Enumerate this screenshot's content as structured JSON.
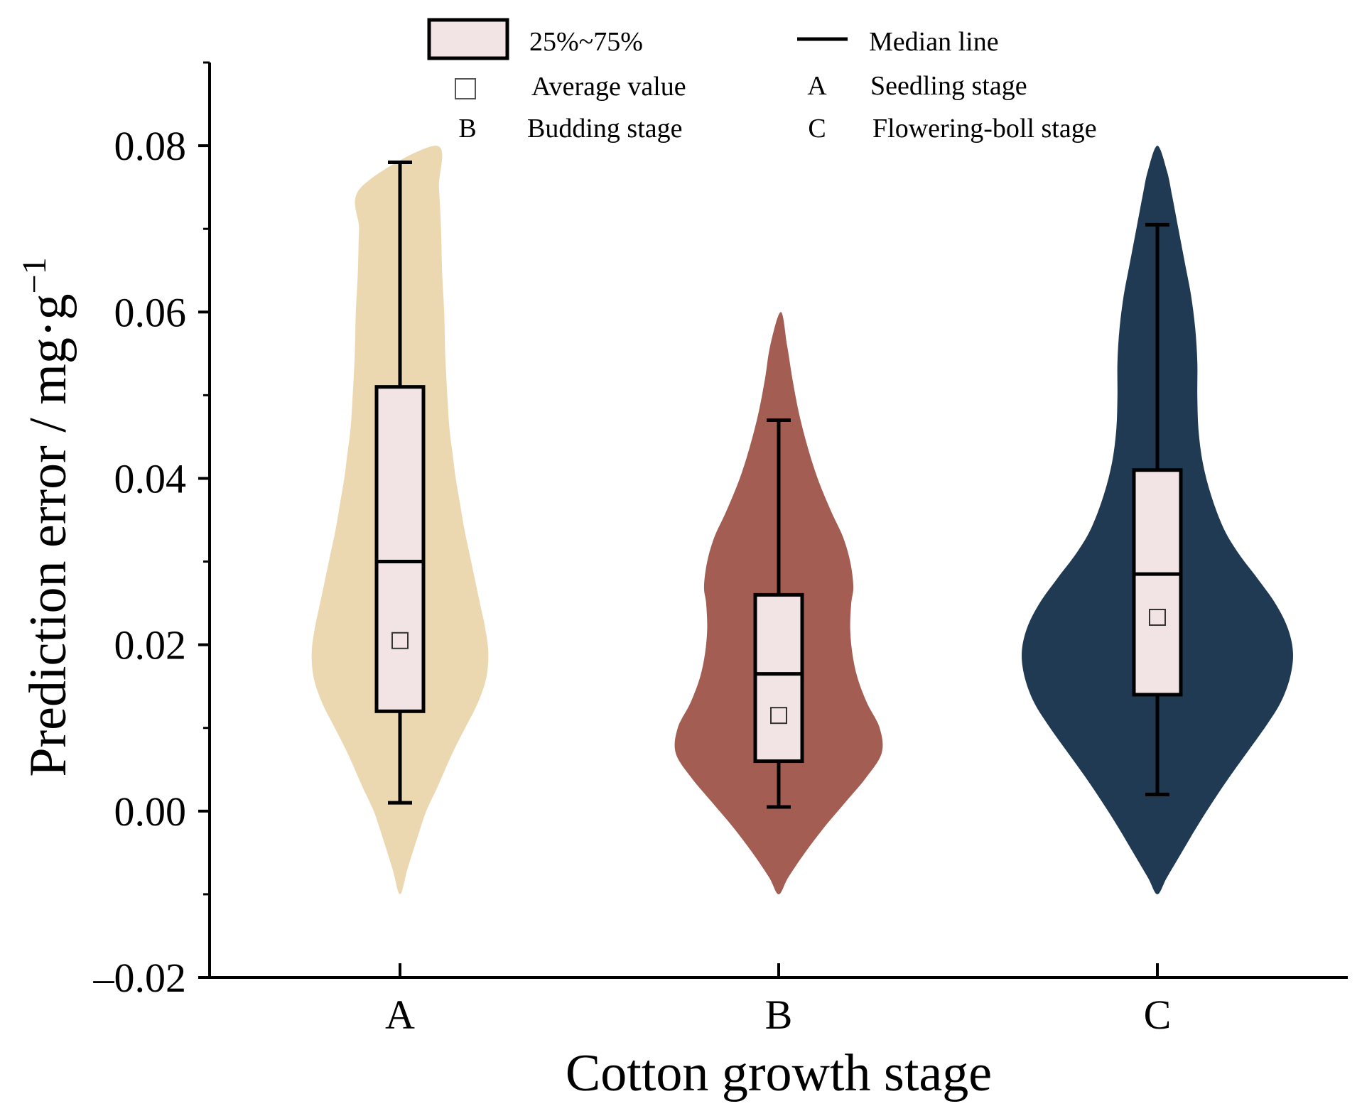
{
  "chart_data": {
    "type": "violin",
    "xlabel": "Cotton growth stage",
    "ylabel_main": "Prediction error / mg·g",
    "ylabel_sup": "−1",
    "ylim": [
      -0.02,
      0.09
    ],
    "yticks": [
      -0.02,
      0.0,
      0.02,
      0.04,
      0.06,
      0.08
    ],
    "ytick_labels": [
      "–0.02",
      "0.00",
      "0.02",
      "0.04",
      "0.06",
      "0.08"
    ],
    "categories": [
      "A",
      "B",
      "C"
    ],
    "colors": {
      "box_fill": "#f2e4e4",
      "line": "#000000"
    },
    "series": [
      {
        "name": "A",
        "color": "#ecd8b0",
        "whisker_low": 0.001,
        "q1": 0.012,
        "median": 0.03,
        "q3": 0.051,
        "whisker_high": 0.078,
        "mean": 0.0205,
        "violin": [
          [
            -0.01,
            0.0
          ],
          [
            -0.007,
            0.007
          ],
          [
            -0.003,
            0.017
          ],
          [
            0.0,
            0.025
          ],
          [
            0.003,
            0.036
          ],
          [
            0.007,
            0.05
          ],
          [
            0.01,
            0.062
          ],
          [
            0.013,
            0.074
          ],
          [
            0.016,
            0.082
          ],
          [
            0.019,
            0.084
          ],
          [
            0.022,
            0.081
          ],
          [
            0.025,
            0.076
          ],
          [
            0.028,
            0.071
          ],
          [
            0.031,
            0.066
          ],
          [
            0.034,
            0.061
          ],
          [
            0.037,
            0.057
          ],
          [
            0.04,
            0.053
          ],
          [
            0.043,
            0.05
          ],
          [
            0.046,
            0.047
          ],
          [
            0.05,
            0.045
          ],
          [
            0.055,
            0.043
          ],
          [
            0.06,
            0.042
          ],
          [
            0.065,
            0.04
          ],
          [
            0.07,
            0.039
          ],
          [
            0.075,
            0.037
          ],
          [
            0.08,
            0.034
          ]
        ]
      },
      {
        "name": "B",
        "color": "#a35d52",
        "whisker_low": 0.0005,
        "q1": 0.006,
        "median": 0.0165,
        "q3": 0.026,
        "whisker_high": 0.047,
        "mean": 0.0115,
        "violin": [
          [
            -0.01,
            0.0
          ],
          [
            -0.008,
            0.009
          ],
          [
            -0.005,
            0.025
          ],
          [
            -0.002,
            0.043
          ],
          [
            0.001,
            0.063
          ],
          [
            0.004,
            0.083
          ],
          [
            0.007,
            0.098
          ],
          [
            0.01,
            0.096
          ],
          [
            0.013,
            0.084
          ],
          [
            0.016,
            0.075
          ],
          [
            0.019,
            0.07
          ],
          [
            0.022,
            0.068
          ],
          [
            0.025,
            0.069
          ],
          [
            0.027,
            0.071
          ],
          [
            0.03,
            0.068
          ],
          [
            0.033,
            0.061
          ],
          [
            0.036,
            0.05
          ],
          [
            0.04,
            0.037
          ],
          [
            0.044,
            0.027
          ],
          [
            0.048,
            0.019
          ],
          [
            0.052,
            0.013
          ],
          [
            0.056,
            0.008
          ],
          [
            0.06,
            0.002
          ]
        ]
      },
      {
        "name": "C",
        "color": "#1f3a52",
        "whisker_low": 0.002,
        "q1": 0.014,
        "median": 0.0285,
        "q3": 0.041,
        "whisker_high": 0.0705,
        "mean": 0.0233,
        "violin": [
          [
            -0.01,
            0.0
          ],
          [
            -0.008,
            0.009
          ],
          [
            -0.005,
            0.023
          ],
          [
            -0.002,
            0.037
          ],
          [
            0.001,
            0.052
          ],
          [
            0.004,
            0.068
          ],
          [
            0.007,
            0.085
          ],
          [
            0.01,
            0.102
          ],
          [
            0.013,
            0.117
          ],
          [
            0.016,
            0.126
          ],
          [
            0.019,
            0.129
          ],
          [
            0.022,
            0.124
          ],
          [
            0.025,
            0.112
          ],
          [
            0.028,
            0.095
          ],
          [
            0.031,
            0.077
          ],
          [
            0.034,
            0.063
          ],
          [
            0.038,
            0.051
          ],
          [
            0.042,
            0.043
          ],
          [
            0.046,
            0.039
          ],
          [
            0.05,
            0.038
          ],
          [
            0.054,
            0.038
          ],
          [
            0.058,
            0.036
          ],
          [
            0.062,
            0.032
          ],
          [
            0.066,
            0.026
          ],
          [
            0.07,
            0.02
          ],
          [
            0.074,
            0.014
          ],
          [
            0.077,
            0.009
          ],
          [
            0.08,
            0.0
          ]
        ]
      }
    ],
    "legend": {
      "position": "top",
      "entries": [
        {
          "symbol": "box",
          "label": "25%~75%"
        },
        {
          "symbol": "line",
          "label": "Median line"
        },
        {
          "symbol": "square",
          "label": "Average value"
        },
        {
          "symbol": "A",
          "label": "Seedling stage"
        },
        {
          "symbol": "B",
          "label": "Budding stage"
        },
        {
          "symbol": "C",
          "label": "Flowering-boll stage"
        }
      ]
    }
  }
}
